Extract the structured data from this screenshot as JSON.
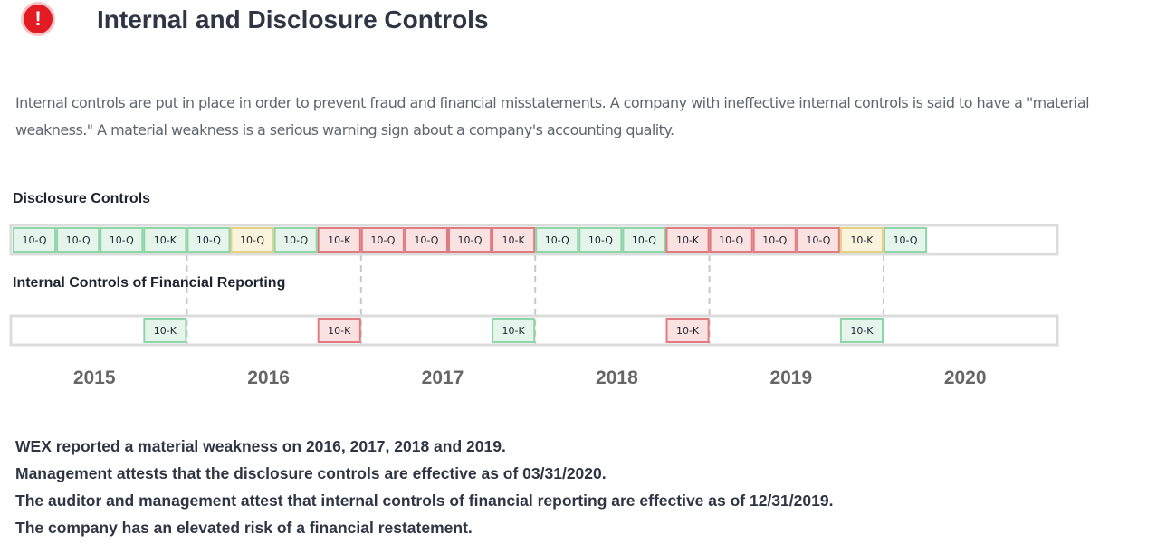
{
  "header": {
    "alert_glyph": "!",
    "title": "Internal and Disclosure Controls"
  },
  "intro": "Internal controls are put in place in order to prevent fraud and financial misstatements. A company with ineffective internal controls is said to have a \"material weakness.\" A material weakness is a serious warning sign about a company's accounting quality.",
  "colors": {
    "effective": {
      "fill": "#e6f5ec",
      "border": "#8fd5aa"
    },
    "weakness": {
      "fill": "#fbe2e2",
      "border": "#e07c80"
    },
    "caution": {
      "fill": "#fbf4dd",
      "border": "#e6cf86"
    },
    "track": "#dcdcdc"
  },
  "chart_data": {
    "type": "table",
    "years": [
      "2015",
      "2016",
      "2017",
      "2018",
      "2019",
      "2020"
    ],
    "rows": [
      {
        "label": "Disclosure Controls",
        "filings": [
          {
            "type": "10-Q",
            "status": "effective"
          },
          {
            "type": "10-Q",
            "status": "effective"
          },
          {
            "type": "10-Q",
            "status": "effective"
          },
          {
            "type": "10-K",
            "status": "effective"
          },
          {
            "type": "10-Q",
            "status": "effective"
          },
          {
            "type": "10-Q",
            "status": "caution"
          },
          {
            "type": "10-Q",
            "status": "effective"
          },
          {
            "type": "10-K",
            "status": "weakness"
          },
          {
            "type": "10-Q",
            "status": "weakness"
          },
          {
            "type": "10-Q",
            "status": "weakness"
          },
          {
            "type": "10-Q",
            "status": "weakness"
          },
          {
            "type": "10-K",
            "status": "weakness"
          },
          {
            "type": "10-Q",
            "status": "effective"
          },
          {
            "type": "10-Q",
            "status": "effective"
          },
          {
            "type": "10-Q",
            "status": "effective"
          },
          {
            "type": "10-K",
            "status": "weakness"
          },
          {
            "type": "10-Q",
            "status": "weakness"
          },
          {
            "type": "10-Q",
            "status": "weakness"
          },
          {
            "type": "10-Q",
            "status": "weakness"
          },
          {
            "type": "10-K",
            "status": "caution"
          },
          {
            "type": "10-Q",
            "status": "effective"
          }
        ]
      },
      {
        "label": "Internal Controls of Financial Reporting",
        "filings": [
          {
            "type": "10-K",
            "status": "effective",
            "year": "2015"
          },
          {
            "type": "10-K",
            "status": "weakness",
            "year": "2016"
          },
          {
            "type": "10-K",
            "status": "effective",
            "year": "2017"
          },
          {
            "type": "10-K",
            "status": "weakness",
            "year": "2018"
          },
          {
            "type": "10-K",
            "status": "effective",
            "year": "2019"
          }
        ]
      }
    ]
  },
  "summary": [
    "WEX reported a material weakness on 2016, 2017, 2018 and 2019.",
    "Management attests that the disclosure controls are effective as of 03/31/2020.",
    "The auditor and management attest that internal controls of financial reporting are effective as of 12/31/2019.",
    "The company has an elevated risk of a financial restatement."
  ]
}
